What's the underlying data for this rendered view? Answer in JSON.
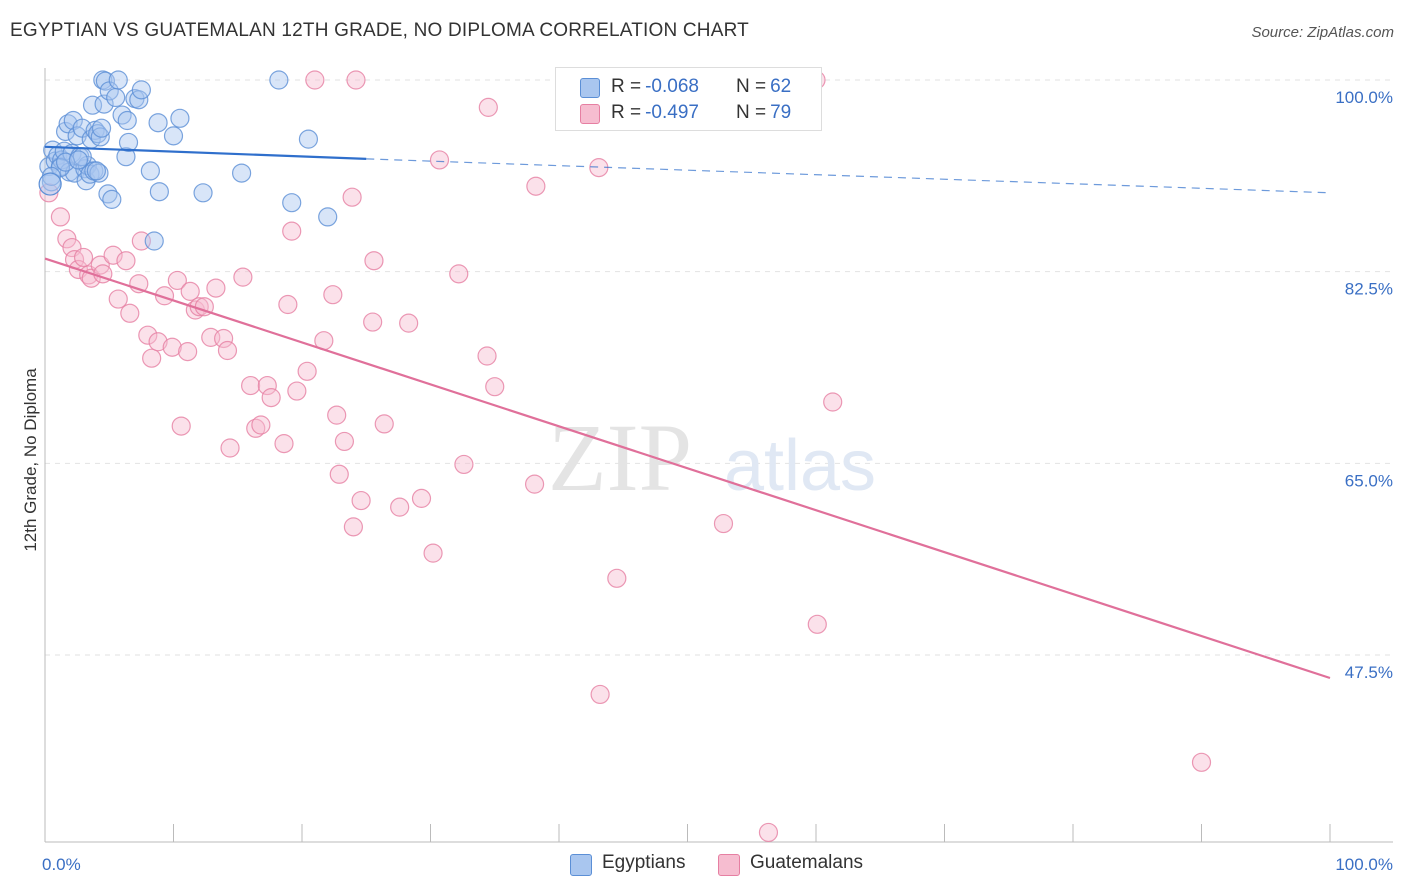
{
  "header": {
    "title": "EGYPTIAN VS GUATEMALAN 12TH GRADE, NO DIPLOMA CORRELATION CHART",
    "source": "Source: ZipAtlas.com"
  },
  "watermark": {
    "zip": "ZIP",
    "atlas": "atlas"
  },
  "legend": {
    "rows": [
      {
        "r_label": "R =",
        "r_value": "-0.068",
        "n_label": "N =",
        "n_value": "62"
      },
      {
        "r_label": "R =",
        "r_value": "-0.497",
        "n_label": "N =",
        "n_value": "79"
      }
    ],
    "bottom": [
      "Egyptians",
      "Guatemalans"
    ]
  },
  "colors": {
    "egyptians_fill": "#a9c6ef",
    "egyptians_stroke": "#5b8fd6",
    "egyptians_line": "#2f6fcc",
    "guatemalans_fill": "#f6bdd0",
    "guatemalans_stroke": "#e67fa2",
    "guatemalans_line": "#e0709a",
    "tick_label": "#3a6fc4"
  },
  "chart_data": {
    "type": "scatter",
    "title": "EGYPTIAN VS GUATEMALAN 12TH GRADE, NO DIPLOMA CORRELATION CHART",
    "xlabel": "",
    "ylabel": "12th Grade, No Diploma",
    "xlim": [
      0,
      100
    ],
    "ylim": [
      30,
      100
    ],
    "x_tick_labels": [
      "0.0%",
      "100.0%"
    ],
    "y_ticks": [
      47.5,
      65.0,
      82.5,
      100.0
    ],
    "y_tick_labels": [
      "47.5%",
      "65.0%",
      "82.5%",
      "100.0%"
    ],
    "grid": true,
    "series": [
      {
        "name": "Egyptians",
        "trend": {
          "x": [
            0,
            25
          ],
          "y": [
            93.9,
            92.8
          ],
          "dashed_to": [
            100,
            89.7
          ]
        },
        "points": [
          [
            0.3,
            92.1
          ],
          [
            0.5,
            90.7
          ],
          [
            0.6,
            93.6
          ],
          [
            0.8,
            92.6
          ],
          [
            1.0,
            93.1
          ],
          [
            1.2,
            92.1
          ],
          [
            1.3,
            92.7
          ],
          [
            1.5,
            93.5
          ],
          [
            1.6,
            95.3
          ],
          [
            1.8,
            96.0
          ],
          [
            1.9,
            91.6
          ],
          [
            2.1,
            93.3
          ],
          [
            2.2,
            96.3
          ],
          [
            2.3,
            91.5
          ],
          [
            2.5,
            94.9
          ],
          [
            2.7,
            93.0
          ],
          [
            2.9,
            95.6
          ],
          [
            3.1,
            91.9
          ],
          [
            3.2,
            90.8
          ],
          [
            3.3,
            92.2
          ],
          [
            3.5,
            91.4
          ],
          [
            3.6,
            94.6
          ],
          [
            3.7,
            97.7
          ],
          [
            3.8,
            91.7
          ],
          [
            3.9,
            95.4
          ],
          [
            4.1,
            95.1
          ],
          [
            4.2,
            91.5
          ],
          [
            4.3,
            94.8
          ],
          [
            4.4,
            95.6
          ],
          [
            4.5,
            100.0
          ],
          [
            4.6,
            97.8
          ],
          [
            4.7,
            99.9
          ],
          [
            4.9,
            89.6
          ],
          [
            5.0,
            99.0
          ],
          [
            5.2,
            89.1
          ],
          [
            5.5,
            98.4
          ],
          [
            5.7,
            100.0
          ],
          [
            6.0,
            96.8
          ],
          [
            6.3,
            93.0
          ],
          [
            6.4,
            96.3
          ],
          [
            6.5,
            94.3
          ],
          [
            7.0,
            98.3
          ],
          [
            7.3,
            98.2
          ],
          [
            7.5,
            99.1
          ],
          [
            8.2,
            91.7
          ],
          [
            8.5,
            85.3
          ],
          [
            8.8,
            96.1
          ],
          [
            8.9,
            89.8
          ],
          [
            10.0,
            94.9
          ],
          [
            10.5,
            96.5
          ],
          [
            12.3,
            89.7
          ],
          [
            15.3,
            91.5
          ],
          [
            18.2,
            100.0
          ],
          [
            19.2,
            88.8
          ],
          [
            20.5,
            94.6
          ],
          [
            22.0,
            87.5
          ],
          [
            2.9,
            93.0
          ],
          [
            1.2,
            92.0
          ],
          [
            0.5,
            91.2
          ],
          [
            4.0,
            91.7
          ],
          [
            1.6,
            92.5
          ],
          [
            2.6,
            92.7
          ]
        ]
      },
      {
        "name": "Guatemalans",
        "trend": {
          "x": [
            0,
            100
          ],
          "y": [
            83.7,
            45.4
          ]
        },
        "points": [
          [
            0.3,
            89.7
          ],
          [
            1.2,
            87.5
          ],
          [
            1.7,
            85.5
          ],
          [
            2.1,
            84.7
          ],
          [
            2.3,
            83.6
          ],
          [
            2.6,
            82.7
          ],
          [
            3.0,
            83.8
          ],
          [
            3.4,
            82.2
          ],
          [
            3.6,
            81.9
          ],
          [
            4.3,
            83.1
          ],
          [
            4.5,
            82.3
          ],
          [
            5.3,
            84.0
          ],
          [
            5.7,
            80.0
          ],
          [
            6.3,
            83.5
          ],
          [
            6.6,
            78.7
          ],
          [
            7.3,
            81.4
          ],
          [
            7.5,
            85.3
          ],
          [
            8.0,
            76.7
          ],
          [
            8.3,
            74.6
          ],
          [
            8.8,
            76.1
          ],
          [
            9.3,
            80.3
          ],
          [
            9.9,
            75.6
          ],
          [
            10.3,
            81.7
          ],
          [
            10.6,
            68.4
          ],
          [
            11.1,
            75.2
          ],
          [
            11.3,
            80.7
          ],
          [
            11.7,
            79.0
          ],
          [
            12.0,
            79.3
          ],
          [
            12.4,
            79.3
          ],
          [
            12.9,
            76.5
          ],
          [
            13.3,
            81.0
          ],
          [
            13.9,
            76.4
          ],
          [
            14.2,
            75.3
          ],
          [
            14.4,
            66.4
          ],
          [
            15.4,
            82.0
          ],
          [
            16.0,
            72.1
          ],
          [
            16.4,
            68.2
          ],
          [
            16.8,
            68.5
          ],
          [
            17.3,
            72.1
          ],
          [
            17.6,
            71.0
          ],
          [
            18.6,
            66.8
          ],
          [
            18.9,
            79.5
          ],
          [
            19.2,
            86.2
          ],
          [
            19.6,
            71.6
          ],
          [
            20.4,
            73.4
          ],
          [
            21.0,
            100.0
          ],
          [
            21.7,
            76.2
          ],
          [
            22.4,
            80.4
          ],
          [
            22.7,
            69.4
          ],
          [
            22.9,
            64.0
          ],
          [
            23.3,
            67.0
          ],
          [
            23.9,
            89.3
          ],
          [
            24.0,
            59.2
          ],
          [
            24.2,
            100.0
          ],
          [
            24.6,
            61.6
          ],
          [
            25.5,
            77.9
          ],
          [
            25.6,
            83.5
          ],
          [
            26.4,
            68.6
          ],
          [
            27.6,
            61.0
          ],
          [
            28.3,
            77.8
          ],
          [
            29.3,
            61.8
          ],
          [
            30.2,
            56.8
          ],
          [
            30.7,
            92.7
          ],
          [
            32.2,
            82.3
          ],
          [
            32.6,
            64.9
          ],
          [
            34.4,
            74.8
          ],
          [
            34.5,
            97.5
          ],
          [
            35.0,
            72.0
          ],
          [
            38.1,
            63.1
          ],
          [
            38.2,
            90.3
          ],
          [
            43.1,
            92.0
          ],
          [
            43.2,
            43.9
          ],
          [
            44.5,
            54.5
          ],
          [
            52.8,
            59.5
          ],
          [
            56.3,
            31.3
          ],
          [
            60.0,
            100.0
          ],
          [
            60.1,
            50.3
          ],
          [
            61.3,
            70.6
          ],
          [
            90.0,
            37.7
          ]
        ]
      }
    ]
  }
}
